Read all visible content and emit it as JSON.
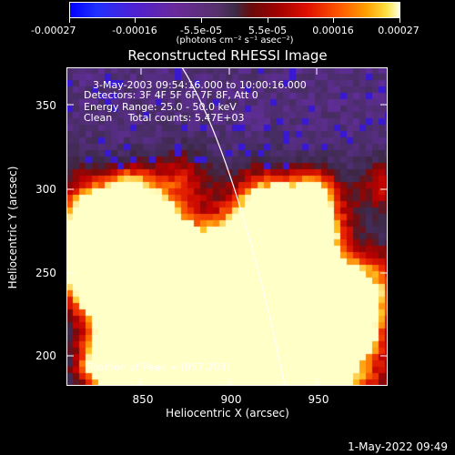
{
  "colorbar": {
    "tick_labels": [
      "-0.00027",
      "-0.00016",
      "-5.5e-05",
      "5.5e-05",
      "0.00016",
      "0.00027"
    ],
    "units_label": "(photons cm⁻² s⁻¹ asec⁻²)"
  },
  "title": "Reconstructed RHESSI Image",
  "info": {
    "time": "3-May-2003 09:54:16.000 to 10:00:16.000",
    "detectors": "Detectors: 3F 4F 5F 6F 7F 8F, Att 0",
    "energy": "Energy Range: 25.0 - 50.0 keV",
    "clean": "Clean     Total counts: 5.47E+03",
    "peak": "Position of Peak = [957,203]"
  },
  "axes": {
    "xlabel": "Heliocentric X (arcsec)",
    "ylabel": "Heliocentric Y (arcsec)",
    "x_ticks": [
      "850",
      "900",
      "950"
    ],
    "y_ticks": [
      "350",
      "300",
      "250",
      "200"
    ]
  },
  "footer": {
    "date": "1-May-2022 09:49"
  }
}
